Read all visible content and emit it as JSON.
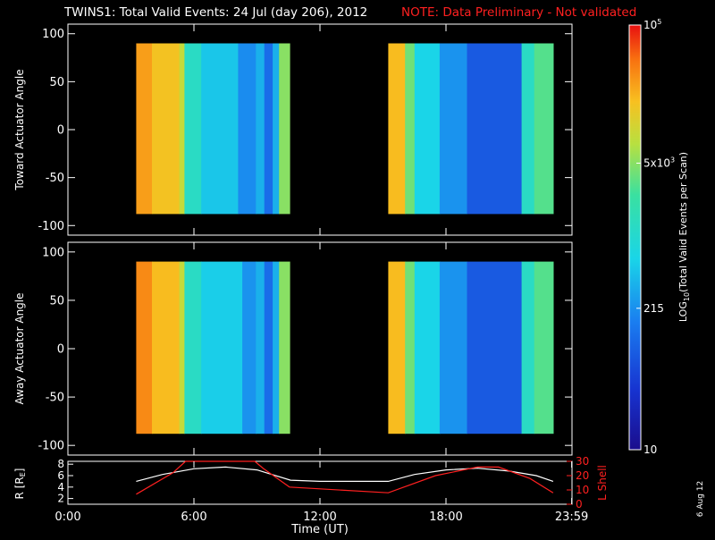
{
  "header": {
    "title": "TWINS1: Total Valid Events: 24 Jul (day 206), 2012",
    "note": "NOTE: Data Preliminary - Not validated",
    "note_color": "#ff2020"
  },
  "side_stamp": "6 Aug 12",
  "chart_data": [
    {
      "type": "heatmap",
      "panel": "toward",
      "ylabel": "Toward Actuator Angle",
      "ylim": [
        -110,
        110
      ],
      "yticks": [
        100,
        50,
        0,
        -50,
        -100
      ],
      "xlim": [
        0,
        24
      ],
      "data_extent_y": [
        -88,
        90
      ],
      "value_scale": "log10",
      "intervals": [
        {
          "start_hr": 3.25,
          "end_hr": 10.55,
          "segments": [
            {
              "start_hr": 3.25,
              "end_hr": 4.0,
              "log10": 4.45
            },
            {
              "start_hr": 4.0,
              "end_hr": 5.3,
              "log10": 4.25
            },
            {
              "start_hr": 5.3,
              "end_hr": 5.55,
              "log10": 3.95
            },
            {
              "start_hr": 5.55,
              "end_hr": 6.35,
              "log10": 3.1
            },
            {
              "start_hr": 6.35,
              "end_hr": 8.1,
              "log10": 2.7
            },
            {
              "start_hr": 8.1,
              "end_hr": 8.95,
              "log10": 2.3
            },
            {
              "start_hr": 8.95,
              "end_hr": 9.35,
              "log10": 2.55
            },
            {
              "start_hr": 9.35,
              "end_hr": 9.75,
              "log10": 2.05
            },
            {
              "start_hr": 9.75,
              "end_hr": 10.05,
              "log10": 2.55
            },
            {
              "start_hr": 10.05,
              "end_hr": 10.55,
              "log10": 3.7
            }
          ]
        },
        {
          "start_hr": 15.25,
          "end_hr": 23.1,
          "segments": [
            {
              "start_hr": 15.25,
              "end_hr": 16.05,
              "log10": 4.3
            },
            {
              "start_hr": 16.05,
              "end_hr": 16.5,
              "log10": 3.6
            },
            {
              "start_hr": 16.5,
              "end_hr": 17.7,
              "log10": 2.8
            },
            {
              "start_hr": 17.7,
              "end_hr": 19.0,
              "log10": 2.35
            },
            {
              "start_hr": 19.0,
              "end_hr": 21.6,
              "log10": 1.9
            },
            {
              "start_hr": 21.6,
              "end_hr": 22.2,
              "log10": 3.1
            },
            {
              "start_hr": 22.2,
              "end_hr": 23.1,
              "log10": 3.5
            }
          ]
        }
      ]
    },
    {
      "type": "heatmap",
      "panel": "away",
      "ylabel": "Away Actuator Angle",
      "ylim": [
        -110,
        110
      ],
      "yticks": [
        100,
        50,
        0,
        -50,
        -100
      ],
      "xlim": [
        0,
        24
      ],
      "data_extent_y": [
        -88,
        90
      ],
      "value_scale": "log10",
      "intervals": [
        {
          "start_hr": 3.25,
          "end_hr": 10.55,
          "segments": [
            {
              "start_hr": 3.25,
              "end_hr": 4.0,
              "log10": 4.55
            },
            {
              "start_hr": 4.0,
              "end_hr": 5.3,
              "log10": 4.3
            },
            {
              "start_hr": 5.3,
              "end_hr": 5.55,
              "log10": 3.95
            },
            {
              "start_hr": 5.55,
              "end_hr": 6.35,
              "log10": 3.1
            },
            {
              "start_hr": 6.35,
              "end_hr": 8.3,
              "log10": 2.75
            },
            {
              "start_hr": 8.3,
              "end_hr": 8.95,
              "log10": 2.35
            },
            {
              "start_hr": 8.95,
              "end_hr": 9.35,
              "log10": 2.55
            },
            {
              "start_hr": 9.35,
              "end_hr": 9.75,
              "log10": 2.05
            },
            {
              "start_hr": 9.75,
              "end_hr": 10.05,
              "log10": 2.55
            },
            {
              "start_hr": 10.05,
              "end_hr": 10.55,
              "log10": 3.7
            }
          ]
        },
        {
          "start_hr": 15.25,
          "end_hr": 23.1,
          "segments": [
            {
              "start_hr": 15.25,
              "end_hr": 16.05,
              "log10": 4.3
            },
            {
              "start_hr": 16.05,
              "end_hr": 16.5,
              "log10": 3.6
            },
            {
              "start_hr": 16.5,
              "end_hr": 17.7,
              "log10": 2.8
            },
            {
              "start_hr": 17.7,
              "end_hr": 19.0,
              "log10": 2.35
            },
            {
              "start_hr": 19.0,
              "end_hr": 21.6,
              "log10": 1.9
            },
            {
              "start_hr": 21.6,
              "end_hr": 22.2,
              "log10": 3.1
            },
            {
              "start_hr": 22.2,
              "end_hr": 23.1,
              "log10": 3.5
            }
          ]
        }
      ]
    },
    {
      "type": "line",
      "panel": "orbit",
      "ylabel": "R [R",
      "ylabel_sub": "E",
      "ylabel_end": "]",
      "ylim": [
        1,
        8.5
      ],
      "yticks": [
        "8",
        "6",
        "4",
        "2"
      ],
      "y2label": "L Shell",
      "y2lim": [
        0,
        30
      ],
      "y2ticks": [
        "30",
        "20",
        "10",
        "0"
      ],
      "y2_color": "#ff2020",
      "xlabel": "Time (UT)",
      "xlim": [
        0,
        24
      ],
      "xticks": [
        {
          "hr": 0,
          "label": "0:00"
        },
        {
          "hr": 6,
          "label": "6:00"
        },
        {
          "hr": 12,
          "label": "12:00"
        },
        {
          "hr": 18,
          "label": "18:00"
        },
        {
          "hr": 23.983,
          "label": "23:59"
        }
      ],
      "series": [
        {
          "axis": "left",
          "color": "#ffffff",
          "x": [
            3.25,
            4.5,
            6,
            7.5,
            9,
            10.6,
            12,
            13.5,
            15.25,
            16.5,
            18,
            19.5,
            21,
            22.3,
            23.1
          ],
          "y": [
            5.0,
            6.2,
            7.2,
            7.5,
            7.0,
            5.2,
            5.0,
            5.0,
            5.0,
            6.2,
            7.0,
            7.3,
            6.8,
            6.0,
            5.0
          ]
        },
        {
          "axis": "right",
          "color": "#ff2020",
          "x": [
            3.25,
            5.0,
            5.6,
            8.9,
            9.3,
            10.55,
            15.25,
            17.5,
            19.5,
            20.5,
            22.0,
            23.1
          ],
          "y": [
            7,
            22,
            30,
            30,
            25,
            12,
            8,
            20,
            26,
            26,
            18,
            8
          ]
        }
      ]
    }
  ],
  "colorbar": {
    "title_prefix": "LOG",
    "title_sub": "10",
    "title_suffix": "(Total Valid Events per Scan)",
    "range_log10": [
      1,
      5
    ],
    "labels": [
      {
        "log10": 5,
        "base": "10",
        "sup": "5",
        "mant": ""
      },
      {
        "log10": 3.699,
        "base": "5x10",
        "sup": "3",
        "mant": ""
      },
      {
        "log10": 2.332,
        "base": "215",
        "sup": "",
        "mant": ""
      },
      {
        "log10": 1,
        "base": "10",
        "sup": "",
        "mant": ""
      }
    ]
  }
}
